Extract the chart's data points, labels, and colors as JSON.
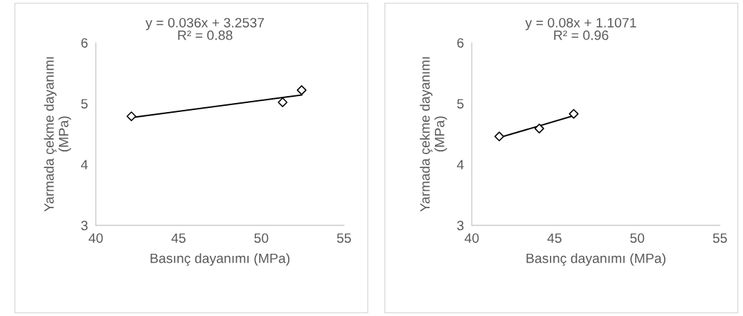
{
  "chart_data": [
    {
      "type": "scatter",
      "xlabel": "Basınç dayanımı (MPa)",
      "ylabel": "Yarmada çekme dayanımı\n(MPa)",
      "annotations": [
        "y = 0.036x + 3.2537",
        "R² = 0.88"
      ],
      "series": [
        {
          "color": "#000000",
          "x": [
            42.15,
            51.29,
            52.44
          ],
          "values": [
            4.79,
            5.02,
            5.22
          ],
          "marker": "diamond"
        },
        {
          "type": "line",
          "color": "#000000",
          "x": [
            42.15,
            52.44
          ],
          "values": [
            4.77,
            5.14
          ],
          "marker": "none",
          "line_style": "solid"
        }
      ],
      "xlim": [
        40,
        55
      ],
      "xticks": [
        40,
        45,
        50,
        55
      ],
      "ylim": [
        3,
        6
      ],
      "yticks": [
        3,
        4,
        5,
        6
      ],
      "grid": false,
      "legend": false
    },
    {
      "type": "scatter",
      "xlabel": "Basınç dayanımı (MPa)",
      "ylabel": "Yarmada çekme dayanımı\n(MPa)",
      "annotations": [
        "y = 0.08x + 1.1071",
        "R² = 0.96"
      ],
      "series": [
        {
          "color": "#000000",
          "x": [
            41.66,
            44.08,
            46.16
          ],
          "values": [
            4.46,
            4.59,
            4.83
          ],
          "marker": "diamond"
        },
        {
          "type": "line",
          "color": "#000000",
          "x": [
            41.66,
            46.16
          ],
          "values": [
            4.44,
            4.8
          ],
          "marker": "none",
          "line_style": "solid"
        }
      ],
      "xlim": [
        40,
        55
      ],
      "xticks": [
        40,
        45,
        50,
        55
      ],
      "ylim": [
        3,
        6
      ],
      "yticks": [
        3,
        4,
        5,
        6
      ],
      "grid": false,
      "legend": false
    }
  ]
}
